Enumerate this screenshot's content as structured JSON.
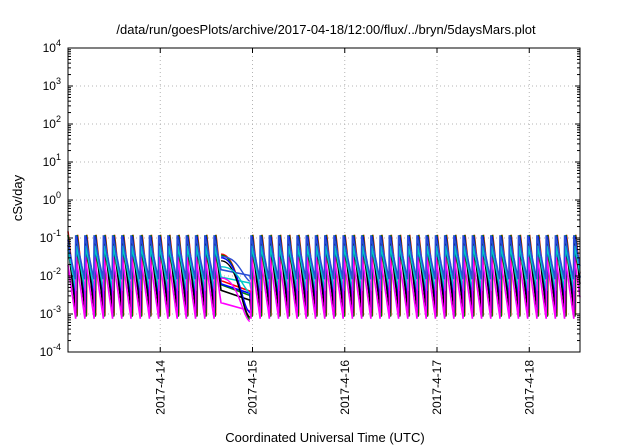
{
  "chart_data": {
    "type": "line",
    "title": "/data/run/goesPlots/archive/2017-04-18/12:00/flux/../bryn/5daysMars.plot",
    "xlabel": "Coordinated Universal Time (UTC)",
    "ylabel": "cSv/day",
    "y_scale": "log",
    "ylim_exponents": [
      -4,
      4
    ],
    "y_ticks": [
      {
        "mantissa": "10",
        "exp": "-4"
      },
      {
        "mantissa": "10",
        "exp": "-3"
      },
      {
        "mantissa": "10",
        "exp": "-2"
      },
      {
        "mantissa": "10",
        "exp": "-1"
      },
      {
        "mantissa": "10",
        "exp": "0"
      },
      {
        "mantissa": "10",
        "exp": "1"
      },
      {
        "mantissa": "10",
        "exp": "2"
      },
      {
        "mantissa": "10",
        "exp": "3"
      },
      {
        "mantissa": "10",
        "exp": "4"
      }
    ],
    "xlim_days": [
      13.0,
      18.55
    ],
    "x_ticks": [
      {
        "day": 14,
        "label": "2017-4-14"
      },
      {
        "day": 15,
        "label": "2017-4-15"
      },
      {
        "day": 16,
        "label": "2017-4-16"
      },
      {
        "day": 17,
        "label": "2017-4-17"
      },
      {
        "day": 18,
        "label": "2017-4-18"
      }
    ],
    "grid": true,
    "gap_start_day": 14.66,
    "gap_end_day": 14.97,
    "series": [
      {
        "color": "#ff0000",
        "peak": 0.15,
        "trough": 0.0009,
        "period_days": 0.1,
        "phase": 0.0
      },
      {
        "color": "#008000",
        "peak": 0.14,
        "trough": 0.0008,
        "period_days": 0.1,
        "phase": 0.003
      },
      {
        "color": "#0000ff",
        "peak": 0.12,
        "trough": 0.0012,
        "period_days": 0.1,
        "phase": 0.006
      },
      {
        "color": "#000000",
        "peak": 0.1,
        "trough": 0.0009,
        "period_days": 0.1,
        "phase": 0.009
      },
      {
        "color": "#00c8c8",
        "peak": 0.07,
        "trough": 0.004,
        "period_days": 0.1,
        "phase": 0.012
      },
      {
        "color": "#ff00ff",
        "peak": 0.035,
        "trough": 0.0007,
        "period_days": 0.1,
        "phase": 0.015
      },
      {
        "color": "#2a4fd6",
        "peak": 0.13,
        "trough": 0.008,
        "period_days": 0.1,
        "phase": 0.02
      }
    ]
  }
}
